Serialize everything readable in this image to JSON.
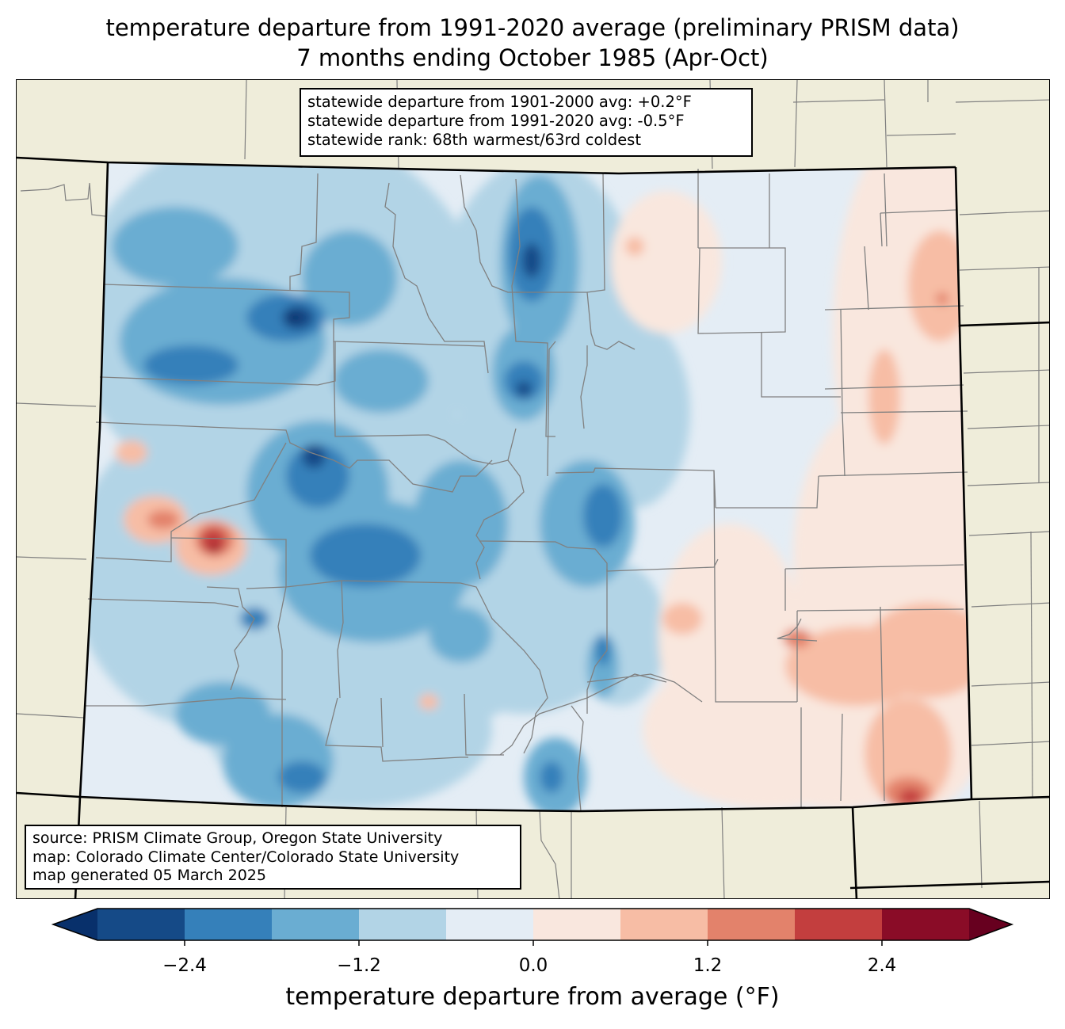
{
  "title": {
    "line1": "temperature departure from 1991-2020 average (preliminary PRISM data)",
    "line2": "7 months ending October 1985 (Apr-Oct)"
  },
  "stats_box": {
    "line1": "statewide departure from 1901-2000 avg: +0.2°F",
    "line2": "statewide departure from 1991-2020 avg: -0.5°F",
    "line3": "statewide rank: 68th warmest/63rd coldest"
  },
  "source_box": {
    "line1": "source: PRISM Climate Group, Oregon State University",
    "line2": "map: Colorado Climate Center/Colorado State University",
    "line3": "map generated 05 March 2025"
  },
  "colorbar": {
    "label": "temperature departure from average (°F)",
    "ticks": [
      "−2.4",
      "−1.2",
      "0.0",
      "1.2",
      "2.4"
    ],
    "tick_values": [
      -2.4,
      -1.2,
      0.0,
      1.2,
      2.4
    ],
    "levels": [
      -3.0,
      -2.4,
      -1.8,
      -1.2,
      -0.6,
      0.0,
      0.6,
      1.2,
      1.8,
      2.4,
      3.0
    ],
    "extend": "both",
    "under_color": "#08306b",
    "over_color": "#67001f",
    "colors": [
      "#154a87",
      "#3580ba",
      "#6aadd2",
      "#b2d4e6",
      "#e4edf5",
      "#f9e7de",
      "#f7bda5",
      "#e3826b",
      "#c33e3e",
      "#8a0c27"
    ]
  },
  "map": {
    "region": "Colorado",
    "background_color": "#efedda",
    "state_border_color": "#000000",
    "county_border_color": "#808080"
  }
}
